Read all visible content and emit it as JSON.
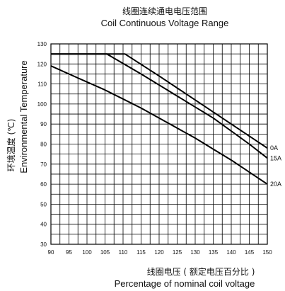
{
  "chart_data": {
    "type": "line",
    "title_cn": "线圈连续通电电压范围",
    "title_en": "Coil Continuous Voltage Range",
    "xlabel_cn": "线圈电压 ( 额定电压百分比 )",
    "xlabel_en": "Percentage of nominal coil voltage",
    "ylabel_cn": "环境温度 (℃)",
    "ylabel_en": "Environmental Temperature",
    "xlim": [
      90,
      150
    ],
    "ylim": [
      30,
      130
    ],
    "xticks": [
      "90",
      "95",
      "100",
      "105",
      "110",
      "115",
      "120",
      "125",
      "130",
      "135",
      "140",
      "145",
      "150"
    ],
    "yticks": [
      "30",
      "40",
      "50",
      "60",
      "70",
      "80",
      "90",
      "100",
      "110",
      "120",
      "130"
    ],
    "grid": true,
    "series": [
      {
        "name": "0A",
        "x": [
          90,
          110.5,
          120,
          130,
          140,
          150
        ],
        "y": [
          125,
          125,
          114,
          102,
          90,
          78
        ]
      },
      {
        "name": "15A",
        "x": [
          90,
          105.5,
          115,
          125,
          135,
          145,
          150
        ],
        "y": [
          125,
          125,
          115,
          104,
          93,
          80,
          73
        ]
      },
      {
        "name": "20A",
        "x": [
          90,
          95,
          100,
          105,
          110,
          115,
          120,
          125,
          130,
          135,
          140,
          145,
          150
        ],
        "y": [
          119,
          115,
          111,
          107,
          102.5,
          98,
          93,
          88,
          83,
          77.5,
          72,
          66,
          60
        ]
      }
    ]
  }
}
